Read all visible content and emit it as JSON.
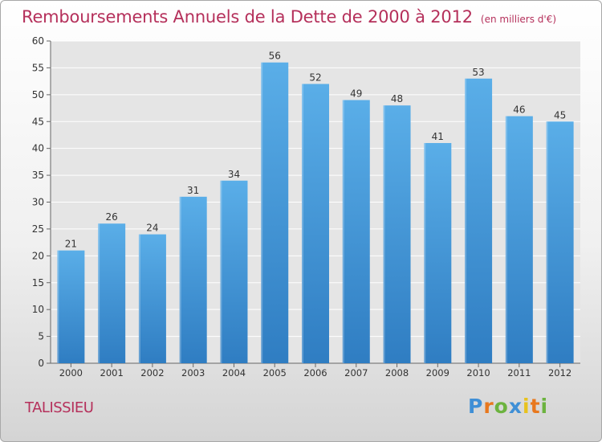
{
  "title": "Remboursements Annuels de la Dette de 2000 à 2012",
  "unit": "(en milliers d'€)",
  "commune": "TALISSIEU",
  "logo": {
    "letters": [
      "P",
      "r",
      "o",
      "x",
      "i",
      "t",
      "i"
    ],
    "colors": [
      "#3f8fd6",
      "#e8781e",
      "#6cb33f",
      "#3f8fd6",
      "#e8c21e",
      "#e8781e",
      "#6cb33f"
    ]
  },
  "colors": {
    "title": "#b5305b",
    "bar_top": "#5aaee8",
    "bar_bottom": "#2f7dc2",
    "plot_bg": "#e5e5e5",
    "grid": "#ffffff",
    "axis_text": "#333333"
  },
  "chart_data": {
    "type": "bar",
    "title": "Remboursements Annuels de la Dette de 2000 à 2012",
    "xlabel": "",
    "ylabel": "",
    "ylim": [
      0,
      60
    ],
    "y_ticks": [
      0,
      5,
      10,
      15,
      20,
      25,
      30,
      35,
      40,
      45,
      50,
      55,
      60
    ],
    "categories": [
      "2000",
      "2001",
      "2002",
      "2003",
      "2004",
      "2005",
      "2006",
      "2007",
      "2008",
      "2009",
      "2010",
      "2011",
      "2012"
    ],
    "values": [
      21,
      26,
      24,
      31,
      34,
      56,
      52,
      49,
      48,
      41,
      53,
      46,
      45
    ],
    "grid": true
  }
}
